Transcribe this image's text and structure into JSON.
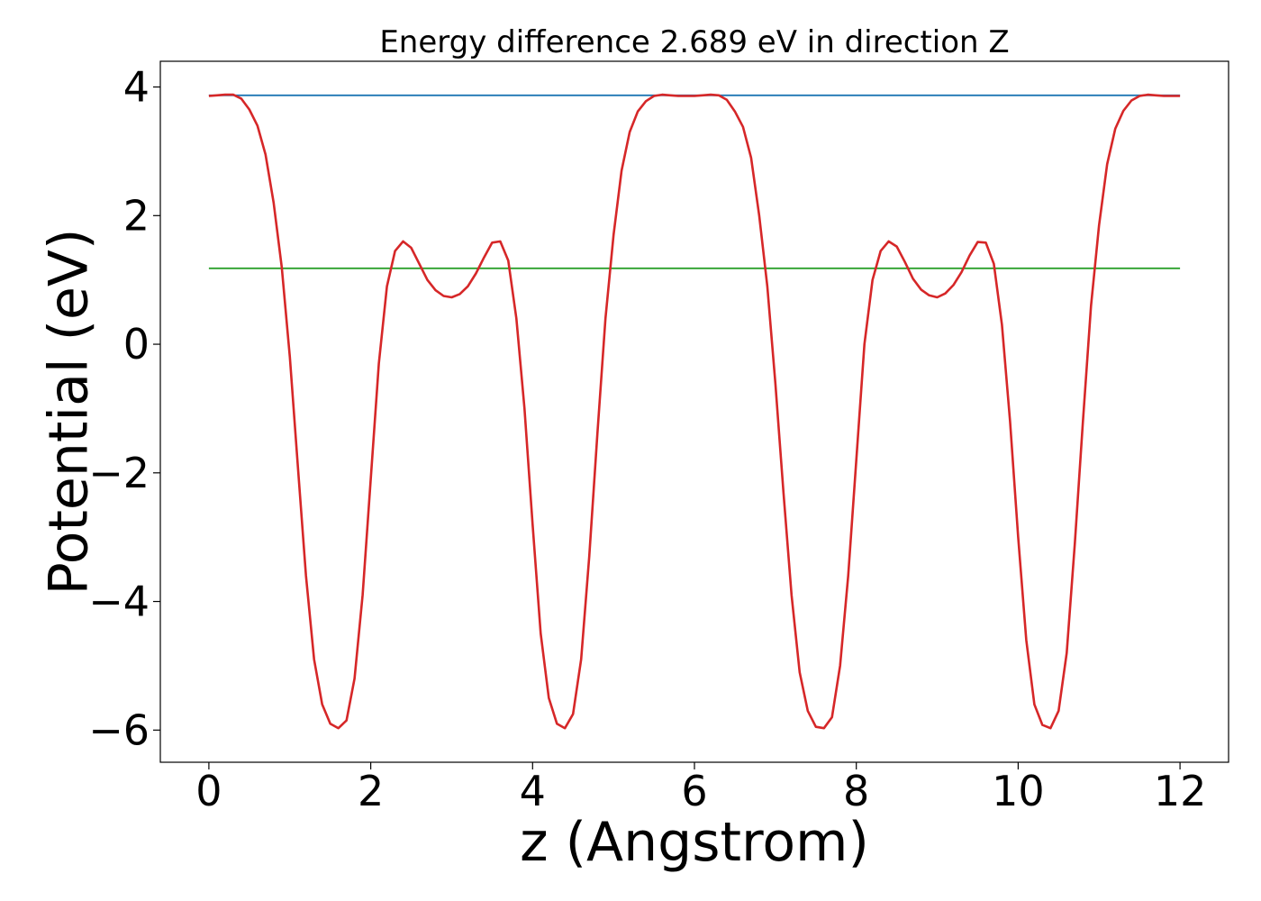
{
  "chart_data": {
    "type": "line",
    "title": "Energy difference 2.689 eV in direction Z",
    "xlabel": "z (Angstrom)",
    "ylabel": "Potential (eV)",
    "xlim": [
      -0.6,
      12.6
    ],
    "ylim": [
      -6.5,
      4.4
    ],
    "x_ticks": [
      0,
      2,
      4,
      6,
      8,
      10,
      12
    ],
    "x_tick_labels": [
      "0",
      "2",
      "4",
      "6",
      "8",
      "10",
      "12"
    ],
    "y_ticks": [
      -6,
      -4,
      -2,
      0,
      2,
      4
    ],
    "y_tick_labels": [
      "−6",
      "−4",
      "−2",
      "0",
      "2",
      "4"
    ],
    "grid": false,
    "series": [
      {
        "color": "#1f77b4",
        "x": [
          0,
          12
        ],
        "y": [
          3.87,
          3.87
        ]
      },
      {
        "color": "#2ca02c",
        "x": [
          0,
          12
        ],
        "y": [
          1.18,
          1.18
        ]
      },
      {
        "color": "#d62728",
        "x": [
          0,
          0.1,
          0.2,
          0.3,
          0.4,
          0.5,
          0.6,
          0.7,
          0.8,
          0.9,
          1.0,
          1.1,
          1.2,
          1.3,
          1.4,
          1.5,
          1.6,
          1.7,
          1.8,
          1.9,
          2.0,
          2.1,
          2.2,
          2.3,
          2.4,
          2.5,
          2.6,
          2.7,
          2.8,
          2.9,
          3.0,
          3.1,
          3.2,
          3.3,
          3.4,
          3.5,
          3.6,
          3.7,
          3.8,
          3.9,
          4.0,
          4.1,
          4.2,
          4.3,
          4.4,
          4.5,
          4.6,
          4.7,
          4.8,
          4.9,
          5.0,
          5.1,
          5.2,
          5.3,
          5.4,
          5.5,
          5.6,
          5.7,
          5.8,
          5.9,
          6.0,
          6.1,
          6.2,
          6.3,
          6.4,
          6.5,
          6.6,
          6.7,
          6.8,
          6.9,
          7.0,
          7.1,
          7.2,
          7.3,
          7.4,
          7.5,
          7.6,
          7.7,
          7.8,
          7.9,
          8.0,
          8.1,
          8.2,
          8.3,
          8.4,
          8.5,
          8.6,
          8.7,
          8.8,
          8.9,
          9.0,
          9.1,
          9.2,
          9.3,
          9.4,
          9.5,
          9.6,
          9.7,
          9.8,
          9.9,
          10.0,
          10.1,
          10.2,
          10.3,
          10.4,
          10.5,
          10.6,
          10.7,
          10.8,
          10.9,
          11.0,
          11.1,
          11.2,
          11.3,
          11.4,
          11.5,
          11.6,
          11.7,
          11.8,
          11.9,
          12.0
        ],
        "y": [
          3.86,
          3.87,
          3.88,
          3.88,
          3.82,
          3.65,
          3.4,
          2.95,
          2.2,
          1.2,
          -0.2,
          -1.9,
          -3.6,
          -4.9,
          -5.6,
          -5.9,
          -5.97,
          -5.85,
          -5.2,
          -3.9,
          -2.1,
          -0.3,
          0.9,
          1.45,
          1.6,
          1.5,
          1.25,
          1.0,
          0.84,
          0.75,
          0.73,
          0.78,
          0.9,
          1.1,
          1.35,
          1.58,
          1.6,
          1.3,
          0.4,
          -1.0,
          -2.8,
          -4.5,
          -5.5,
          -5.9,
          -5.97,
          -5.75,
          -4.9,
          -3.3,
          -1.4,
          0.4,
          1.7,
          2.7,
          3.3,
          3.62,
          3.78,
          3.86,
          3.88,
          3.87,
          3.86,
          3.86,
          3.86,
          3.87,
          3.88,
          3.87,
          3.8,
          3.62,
          3.38,
          2.9,
          2.0,
          0.9,
          -0.6,
          -2.3,
          -3.9,
          -5.1,
          -5.7,
          -5.95,
          -5.97,
          -5.8,
          -5.0,
          -3.6,
          -1.8,
          0.0,
          1.0,
          1.45,
          1.6,
          1.52,
          1.28,
          1.02,
          0.85,
          0.76,
          0.73,
          0.79,
          0.92,
          1.12,
          1.38,
          1.59,
          1.58,
          1.25,
          0.3,
          -1.2,
          -3.0,
          -4.6,
          -5.6,
          -5.92,
          -5.97,
          -5.7,
          -4.8,
          -3.1,
          -1.2,
          0.6,
          1.85,
          2.8,
          3.35,
          3.63,
          3.79,
          3.86,
          3.88,
          3.87,
          3.86,
          3.86,
          3.86
        ]
      }
    ]
  }
}
